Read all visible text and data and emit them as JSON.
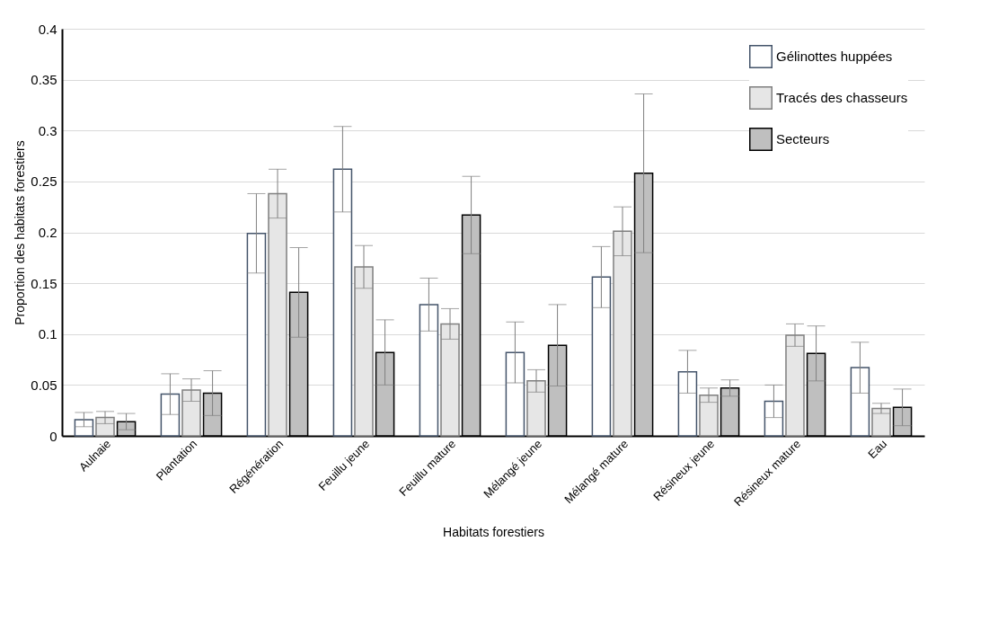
{
  "chart_data": {
    "type": "bar",
    "xlabel": "Habitats forestiers",
    "ylabel": "Proportion des habitats forestiers",
    "categories": [
      "Aulnaie",
      "Plantation",
      "Régénération",
      "Feuillu jeune",
      "Feuillu mature",
      "Mélangé jeune",
      "Mélangé mature",
      "Résineux jeune",
      "Résineux mature",
      "Eau"
    ],
    "series": [
      {
        "name": "Gélinottes huppées",
        "color": "#ffffff",
        "values": [
          0.016,
          0.041,
          0.199,
          0.262,
          0.129,
          0.082,
          0.156,
          0.063,
          0.034,
          0.067
        ],
        "errors": [
          0.007,
          0.02,
          0.039,
          0.042,
          0.026,
          0.03,
          0.03,
          0.021,
          0.016,
          0.025
        ]
      },
      {
        "name": "Tracés des chasseurs",
        "color": "#e6e6e6",
        "values": [
          0.018,
          0.045,
          0.238,
          0.166,
          0.11,
          0.054,
          0.201,
          0.04,
          0.099,
          0.027
        ],
        "errors": [
          0.006,
          0.011,
          0.024,
          0.021,
          0.015,
          0.011,
          0.024,
          0.007,
          0.011,
          0.005
        ]
      },
      {
        "name": "Secteurs",
        "color": "#bfbfbf",
        "values": [
          0.014,
          0.042,
          0.141,
          0.082,
          0.217,
          0.089,
          0.258,
          0.047,
          0.081,
          0.028
        ],
        "errors": [
          0.008,
          0.022,
          0.044,
          0.032,
          0.038,
          0.04,
          0.078,
          0.008,
          0.027,
          0.018
        ]
      }
    ],
    "ylim": [
      0,
      0.4
    ],
    "yticks": [
      0,
      0.05,
      0.1,
      0.15,
      0.2,
      0.25,
      0.3,
      0.35,
      0.4
    ],
    "grid": "y",
    "legend": "top right"
  }
}
